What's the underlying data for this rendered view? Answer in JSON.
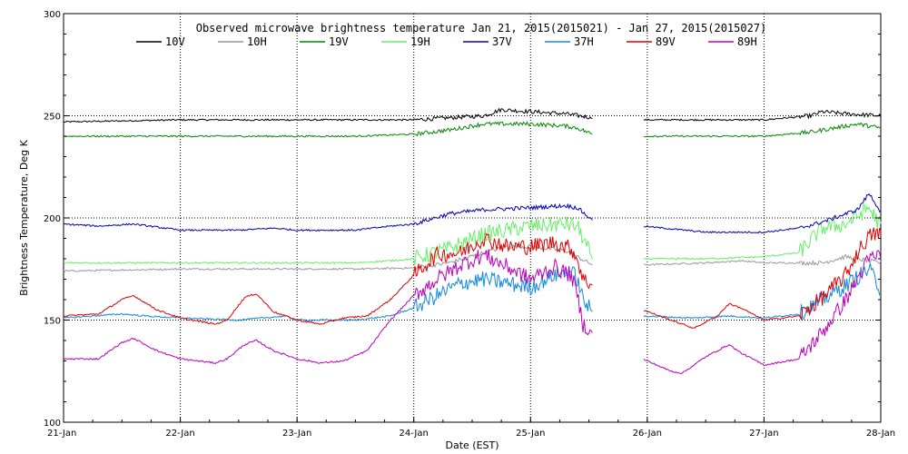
{
  "chart_data": {
    "type": "line",
    "title": "Observed microwave brightness temperature Jan 21, 2015(2015021) - Jan 27, 2015(2015027)",
    "xlabel": "Date (EST)",
    "ylabel": "Brightness Temperature, Deg K",
    "xlim": [
      0,
      7
    ],
    "ylim": [
      100,
      300
    ],
    "x_ticks": [
      {
        "value": 0,
        "label": "21-Jan"
      },
      {
        "value": 1,
        "label": "22-Jan"
      },
      {
        "value": 2,
        "label": "23-Jan"
      },
      {
        "value": 3,
        "label": "24-Jan"
      },
      {
        "value": 4,
        "label": "25-Jan"
      },
      {
        "value": 5,
        "label": "26-Jan"
      },
      {
        "value": 6,
        "label": "27-Jan"
      },
      {
        "value": 7,
        "label": "28-Jan"
      }
    ],
    "y_ticks": [
      {
        "value": 100,
        "label": "100"
      },
      {
        "value": 150,
        "label": "150"
      },
      {
        "value": 200,
        "label": "200"
      },
      {
        "value": 250,
        "label": "250"
      },
      {
        "value": 300,
        "label": "300"
      }
    ],
    "grid": true,
    "legend_position": "top",
    "data_gap": [
      4.53,
      4.96
    ],
    "series": [
      {
        "name": "10V",
        "color": "#000000",
        "points": [
          [
            0,
            247
          ],
          [
            0.5,
            247.5
          ],
          [
            1,
            248
          ],
          [
            1.5,
            248
          ],
          [
            2,
            248
          ],
          [
            2.5,
            248
          ],
          [
            3,
            248
          ],
          [
            3.3,
            249
          ],
          [
            3.6,
            250
          ],
          [
            3.75,
            253
          ],
          [
            4,
            252
          ],
          [
            4.3,
            251
          ],
          [
            4.53,
            249
          ],
          [
            4.96,
            248
          ],
          [
            5.5,
            248
          ],
          [
            6,
            248
          ],
          [
            6.4,
            250
          ],
          [
            6.5,
            252
          ],
          [
            6.7,
            251
          ],
          [
            7,
            250
          ]
        ]
      },
      {
        "name": "10H",
        "color": "#999999",
        "points": [
          [
            0,
            174
          ],
          [
            0.5,
            174.5
          ],
          [
            1,
            175
          ],
          [
            1.5,
            175
          ],
          [
            2,
            175
          ],
          [
            2.5,
            175
          ],
          [
            3,
            175.5
          ],
          [
            3.3,
            178
          ],
          [
            3.6,
            183
          ],
          [
            3.8,
            186
          ],
          [
            4,
            186
          ],
          [
            4.3,
            184
          ],
          [
            4.53,
            177
          ],
          [
            4.96,
            177
          ],
          [
            5.5,
            178
          ],
          [
            5.8,
            179
          ],
          [
            6,
            178
          ],
          [
            6.5,
            178
          ],
          [
            6.7,
            181
          ],
          [
            7,
            178
          ]
        ]
      },
      {
        "name": "19V",
        "color": "#008800",
        "points": [
          [
            0,
            240
          ],
          [
            0.5,
            240
          ],
          [
            1,
            240
          ],
          [
            1.5,
            240
          ],
          [
            2,
            240
          ],
          [
            2.5,
            240
          ],
          [
            3,
            241
          ],
          [
            3.3,
            243
          ],
          [
            3.6,
            246
          ],
          [
            4,
            246
          ],
          [
            4.3,
            245
          ],
          [
            4.4,
            244
          ],
          [
            4.53,
            241
          ],
          [
            4.96,
            240
          ],
          [
            5.5,
            240
          ],
          [
            6,
            240
          ],
          [
            6.4,
            242
          ],
          [
            6.6,
            244
          ],
          [
            6.8,
            246
          ],
          [
            7,
            244
          ]
        ]
      },
      {
        "name": "19H",
        "color": "#66ee66",
        "points": [
          [
            0,
            178
          ],
          [
            0.5,
            178
          ],
          [
            1,
            178
          ],
          [
            1.5,
            178
          ],
          [
            2,
            178
          ],
          [
            2.5,
            178
          ],
          [
            2.8,
            179
          ],
          [
            3,
            180
          ],
          [
            3.3,
            185
          ],
          [
            3.6,
            192
          ],
          [
            4,
            196
          ],
          [
            4.3,
            197
          ],
          [
            4.4,
            196
          ],
          [
            4.53,
            180
          ],
          [
            4.96,
            180
          ],
          [
            5.5,
            180
          ],
          [
            6,
            181
          ],
          [
            6.3,
            183
          ],
          [
            6.5,
            195
          ],
          [
            6.7,
            197
          ],
          [
            6.9,
            205
          ],
          [
            7,
            196
          ]
        ]
      },
      {
        "name": "37V",
        "color": "#0000bb",
        "points": [
          [
            0,
            197
          ],
          [
            0.3,
            196
          ],
          [
            0.6,
            197
          ],
          [
            1,
            194
          ],
          [
            1.5,
            194
          ],
          [
            1.8,
            195
          ],
          [
            2,
            194
          ],
          [
            2.5,
            194
          ],
          [
            2.8,
            196
          ],
          [
            3,
            197
          ],
          [
            3.3,
            202
          ],
          [
            3.6,
            204
          ],
          [
            4,
            205
          ],
          [
            4.3,
            206
          ],
          [
            4.4,
            205
          ],
          [
            4.53,
            199
          ],
          [
            4.96,
            196
          ],
          [
            5.5,
            193
          ],
          [
            6,
            193
          ],
          [
            6.3,
            195
          ],
          [
            6.5,
            198
          ],
          [
            6.8,
            204
          ],
          [
            6.9,
            212
          ],
          [
            7,
            203
          ]
        ]
      },
      {
        "name": "37H",
        "color": "#1188dd",
        "points": [
          [
            0,
            151
          ],
          [
            0.5,
            153
          ],
          [
            0.7,
            152
          ],
          [
            1,
            151
          ],
          [
            1.5,
            150
          ],
          [
            1.9,
            152
          ],
          [
            2,
            150
          ],
          [
            2.5,
            150
          ],
          [
            2.8,
            152
          ],
          [
            3,
            156
          ],
          [
            3.2,
            162
          ],
          [
            3.4,
            168
          ],
          [
            3.6,
            170
          ],
          [
            3.8,
            168
          ],
          [
            4,
            166
          ],
          [
            4.2,
            172
          ],
          [
            4.35,
            174
          ],
          [
            4.4,
            170
          ],
          [
            4.45,
            160
          ],
          [
            4.53,
            154
          ],
          [
            4.96,
            152
          ],
          [
            5.4,
            151
          ],
          [
            5.7,
            152
          ],
          [
            6,
            151
          ],
          [
            6.3,
            153
          ],
          [
            6.5,
            160
          ],
          [
            6.7,
            167
          ],
          [
            6.9,
            175
          ],
          [
            7,
            165
          ]
        ]
      },
      {
        "name": "89V",
        "color": "#dd0000",
        "points": [
          [
            0,
            152
          ],
          [
            0.3,
            153
          ],
          [
            0.5,
            160
          ],
          [
            0.6,
            162
          ],
          [
            0.8,
            155
          ],
          [
            1,
            151
          ],
          [
            1.3,
            148
          ],
          [
            1.4,
            150
          ],
          [
            1.55,
            161
          ],
          [
            1.65,
            163
          ],
          [
            1.8,
            154
          ],
          [
            2,
            150
          ],
          [
            2.2,
            148
          ],
          [
            2.4,
            151
          ],
          [
            2.6,
            152
          ],
          [
            2.8,
            160
          ],
          [
            3,
            172
          ],
          [
            3.2,
            182
          ],
          [
            3.4,
            183
          ],
          [
            3.6,
            190
          ],
          [
            3.8,
            186
          ],
          [
            4,
            186
          ],
          [
            4.2,
            188
          ],
          [
            4.35,
            185
          ],
          [
            4.4,
            180
          ],
          [
            4.45,
            170
          ],
          [
            4.53,
            167
          ],
          [
            4.96,
            155
          ],
          [
            5.3,
            148
          ],
          [
            5.4,
            146
          ],
          [
            5.6,
            152
          ],
          [
            5.7,
            158
          ],
          [
            5.8,
            156
          ],
          [
            6,
            150
          ],
          [
            6.3,
            152
          ],
          [
            6.5,
            161
          ],
          [
            6.7,
            172
          ],
          [
            6.8,
            183
          ],
          [
            6.9,
            191
          ],
          [
            7,
            193
          ]
        ]
      },
      {
        "name": "89H",
        "color": "#bb00bb",
        "points": [
          [
            0,
            131
          ],
          [
            0.3,
            131
          ],
          [
            0.5,
            139
          ],
          [
            0.6,
            141
          ],
          [
            0.8,
            135
          ],
          [
            1,
            131
          ],
          [
            1.3,
            129
          ],
          [
            1.4,
            131
          ],
          [
            1.55,
            138
          ],
          [
            1.65,
            140
          ],
          [
            1.8,
            135
          ],
          [
            2,
            131
          ],
          [
            2.2,
            129
          ],
          [
            2.4,
            130
          ],
          [
            2.6,
            135
          ],
          [
            2.8,
            150
          ],
          [
            3,
            162
          ],
          [
            3.2,
            170
          ],
          [
            3.4,
            177
          ],
          [
            3.6,
            182
          ],
          [
            3.8,
            176
          ],
          [
            4,
            170
          ],
          [
            4.2,
            176
          ],
          [
            4.35,
            172
          ],
          [
            4.4,
            162
          ],
          [
            4.45,
            148
          ],
          [
            4.53,
            144
          ],
          [
            4.96,
            131
          ],
          [
            5.2,
            125
          ],
          [
            5.3,
            124
          ],
          [
            5.5,
            132
          ],
          [
            5.7,
            138
          ],
          [
            5.8,
            134
          ],
          [
            6,
            128
          ],
          [
            6.3,
            131
          ],
          [
            6.5,
            144
          ],
          [
            6.7,
            160
          ],
          [
            6.8,
            170
          ],
          [
            6.9,
            180
          ],
          [
            7,
            182
          ]
        ]
      }
    ]
  }
}
